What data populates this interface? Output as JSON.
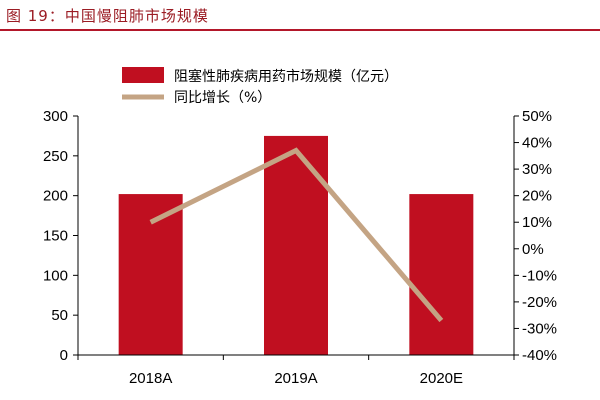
{
  "figure": {
    "title": "图 19：中国慢阻肺市场规模"
  },
  "colors": {
    "title": "#9b1c24",
    "rule": "#b3172a",
    "bar": "#c00f20",
    "line": "#c4a484",
    "axis": "#000000"
  },
  "chart_data": {
    "type": "bar",
    "categories": [
      "2018A",
      "2019A",
      "2020E"
    ],
    "series": [
      {
        "name": "阻塞性肺疾病用药市场规模（亿元）",
        "type": "bar",
        "axis": "left",
        "values": [
          202,
          275,
          202
        ]
      },
      {
        "name": "同比增长（%）",
        "type": "line",
        "axis": "right",
        "values": [
          10,
          37,
          -27
        ]
      }
    ],
    "left_axis": {
      "ylim": [
        0,
        300
      ],
      "ticks": [
        "0",
        "50",
        "100",
        "150",
        "200",
        "250",
        "300"
      ]
    },
    "right_axis": {
      "ylim": [
        -40,
        50
      ],
      "ticks": [
        "-40%",
        "-30%",
        "-20%",
        "-10%",
        "0%",
        "10%",
        "20%",
        "30%",
        "40%",
        "50%"
      ]
    },
    "legend_position": "top",
    "grid": false
  }
}
